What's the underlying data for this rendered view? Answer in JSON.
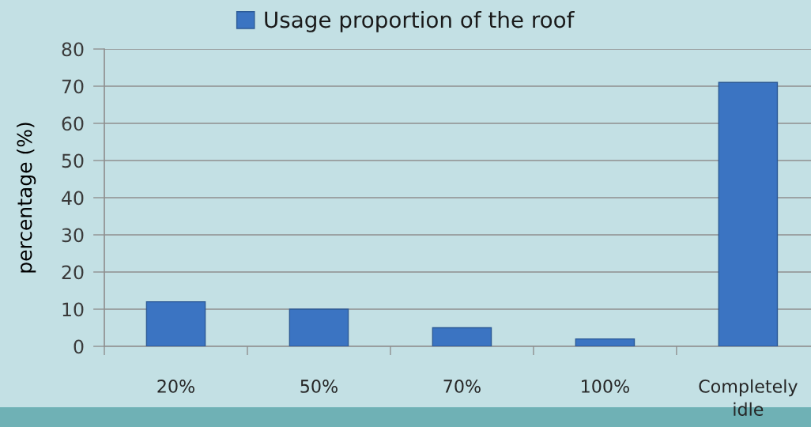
{
  "chart_data": {
    "type": "bar",
    "categories": [
      "20%",
      "50%",
      "70%",
      "100%",
      "Completely\nidle"
    ],
    "series": [
      {
        "name": "Usage proportion of the roof",
        "color": "#3b74c2",
        "values": [
          12,
          10,
          5,
          2,
          71
        ]
      }
    ],
    "ylabel": "percentage (%)",
    "ylim": [
      0,
      80
    ],
    "yticks": [
      0,
      10,
      20,
      30,
      40,
      50,
      60,
      70,
      80
    ],
    "grid": "y",
    "legend": "top"
  }
}
